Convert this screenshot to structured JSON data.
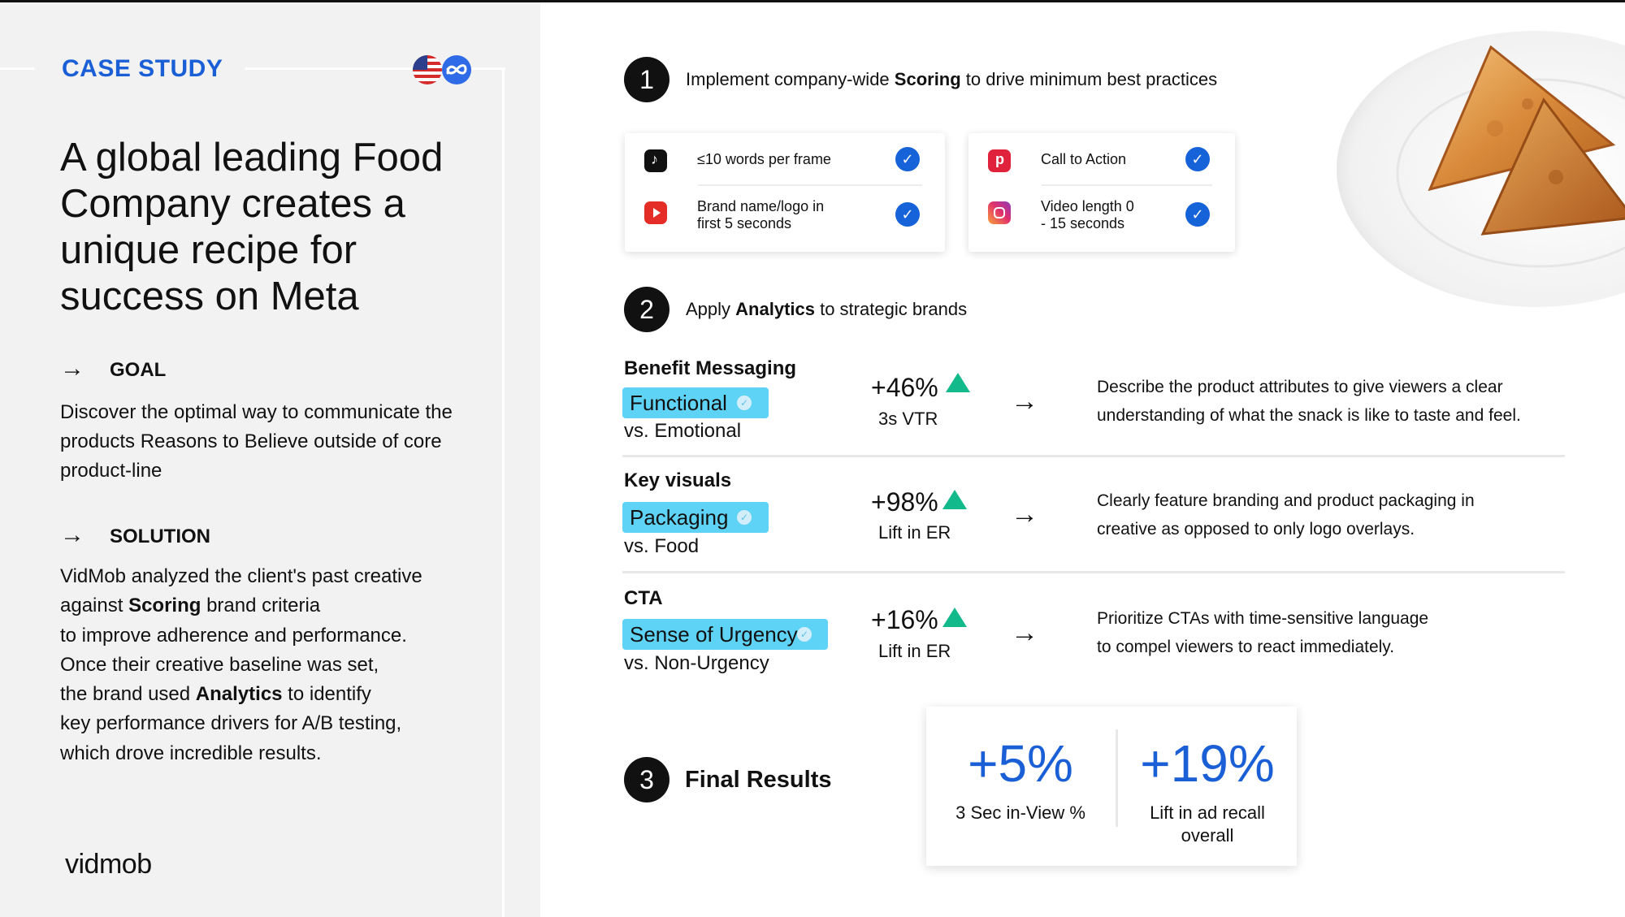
{
  "header": {
    "case_study": "CASE STUDY",
    "icons": [
      "us-flag-icon",
      "meta-logo-icon"
    ]
  },
  "left": {
    "title": "A global leading Food Company creates a unique recipe for success on Meta",
    "goal": {
      "arrow": "→",
      "label": "GOAL",
      "text": "Discover the optimal way to communicate the products Reasons to Believe outside of core product-line"
    },
    "solution": {
      "arrow": "→",
      "label": "SOLUTION",
      "line1": "VidMob analyzed the client's past creative",
      "line2_pre": "against ",
      "line2_bold": "Scoring",
      "line2_post": " brand criteria",
      "line3": "to improve adherence and performance.",
      "line4": "Once their creative baseline was set,",
      "line5_pre": "the brand used ",
      "line5_bold": "Analytics",
      "line5_post": " to identify",
      "line6": "key performance drivers for A/B testing,",
      "line7": "which drove incredible results."
    },
    "brand": "vidmob"
  },
  "step1": {
    "number": "1",
    "text_pre": "Implement company-wide ",
    "text_bold": "Scoring",
    "text_post": " to drive minimum best practices",
    "cards": [
      {
        "items": [
          {
            "platform": "tiktok-icon",
            "line1": "≤10 words per frame",
            "line2": "",
            "check": "✓"
          },
          {
            "platform": "youtube-icon",
            "line1": "Brand name/logo in",
            "line2": "first 5 seconds",
            "check": "✓"
          }
        ]
      },
      {
        "items": [
          {
            "platform": "pinterest-icon",
            "line1": "Call to Action",
            "line2": "",
            "check": "✓"
          },
          {
            "platform": "instagram-icon",
            "line1": "Video length 0",
            "line2": "- 15 seconds",
            "check": "✓"
          }
        ]
      }
    ]
  },
  "step2": {
    "number": "2",
    "text_pre": "Apply ",
    "text_bold": "Analytics",
    "text_post": " to strategic brands",
    "rows": [
      {
        "category": "Benefit Messaging",
        "pill": "Functional",
        "vs": "vs. Emotional",
        "stat": "+46%",
        "metric": "3s VTR",
        "arrow": "→",
        "desc1": "Describe the product attributes to give viewers a clear",
        "desc2": "understanding of what the snack is like to taste and feel."
      },
      {
        "category": "Key visuals",
        "pill": "Packaging",
        "vs": "vs. Food",
        "stat": "+98%",
        "metric": "Lift in ER",
        "arrow": "→",
        "desc1": "Clearly feature branding and product packaging in",
        "desc2": "creative as opposed to only logo overlays."
      },
      {
        "category": "CTA",
        "pill": "Sense of Urgency",
        "vs": "vs. Non-Urgency",
        "stat": "+16%",
        "metric": "Lift in ER",
        "arrow": "→",
        "desc1": "Prioritize CTAs with time-sensitive language",
        "desc2": "to compel viewers to react immediately."
      }
    ]
  },
  "step3": {
    "number": "3",
    "label": "Final Results",
    "results": [
      {
        "value": "+5%",
        "label1": "3 Sec in-View %",
        "label2": ""
      },
      {
        "value": "+19%",
        "label1": "Lift in ad recall",
        "label2": "overall"
      }
    ]
  },
  "colors": {
    "accent_blue": "#1a5fd6",
    "pill_cyan": "#5fd3f5",
    "up_green": "#12b98a",
    "panel_gray": "#f2f2f2"
  }
}
